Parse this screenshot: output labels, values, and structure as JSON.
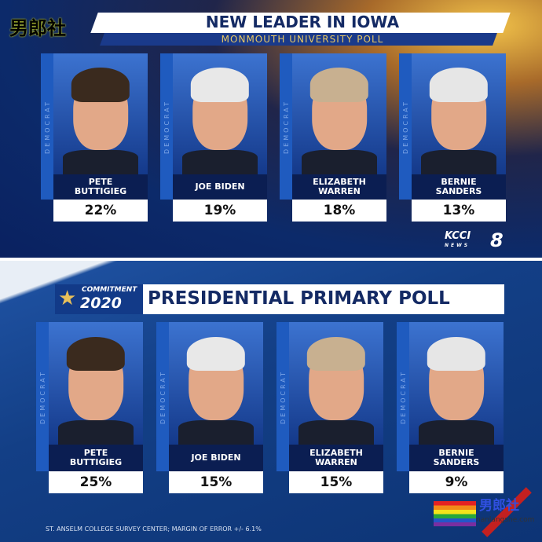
{
  "top": {
    "title": "NEW LEADER IN IOWA",
    "subtitle": "MONMOUTH UNIVERSITY POLL",
    "watermark": "男郎社",
    "logo": {
      "brand": "KCCI",
      "sub": "NEWS",
      "number": "8"
    },
    "candidates": [
      {
        "party": "DEMOCRAT",
        "name": "PETE BUTTIGIEG",
        "pct": "22%"
      },
      {
        "party": "DEMOCRAT",
        "name": "JOE BIDEN",
        "pct": "19%"
      },
      {
        "party": "DEMOCRAT",
        "name": "ELIZABETH WARREN",
        "pct": "18%"
      },
      {
        "party": "DEMOCRAT",
        "name": "BERNIE SANDERS",
        "pct": "13%"
      }
    ]
  },
  "bottom": {
    "badge_top": "COMMITMENT",
    "badge_year": "2020",
    "title": "PRESIDENTIAL PRIMARY POLL",
    "footer": "ST. ANSELM COLLEGE SURVEY CENTER; MARGIN OF ERROR +/- 6.1%",
    "watermark": {
      "name": "男郎社",
      "site": "nanlangshe.com"
    },
    "candidates": [
      {
        "party": "DEMOCRAT",
        "name": "PETE BUTTIGIEG",
        "pct": "25%"
      },
      {
        "party": "DEMOCRAT",
        "name": "JOE BIDEN",
        "pct": "15%"
      },
      {
        "party": "DEMOCRAT",
        "name": "ELIZABETH WARREN",
        "pct": "15%"
      },
      {
        "party": "DEMOCRAT",
        "name": "BERNIE SANDERS",
        "pct": "9%"
      }
    ]
  },
  "colors": {
    "navy": "#142a64",
    "card_blue": "#1f5bbf",
    "gold": "#e6c766"
  }
}
